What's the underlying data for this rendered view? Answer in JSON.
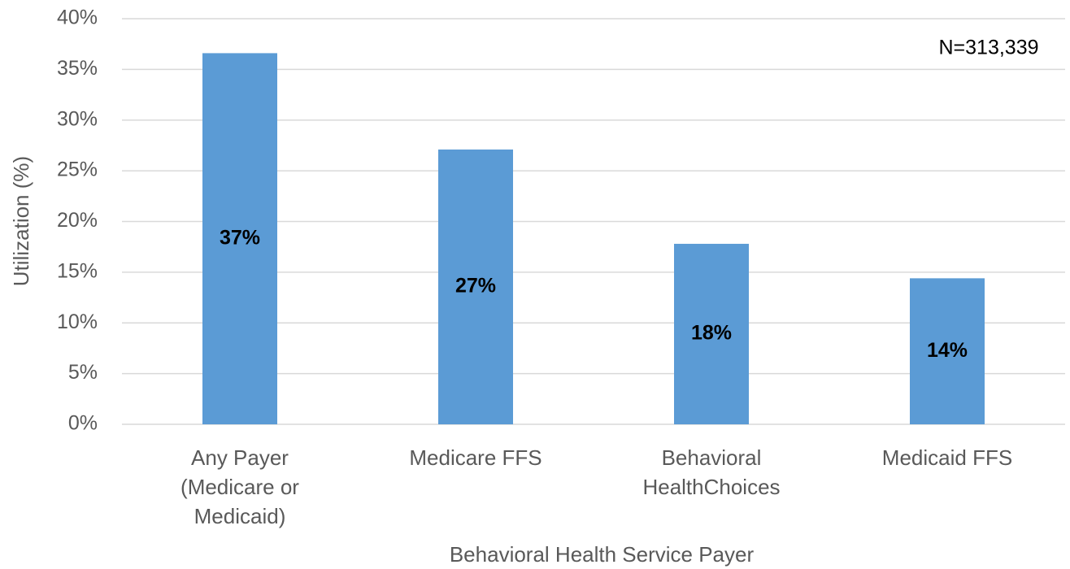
{
  "chart_data": {
    "type": "bar",
    "categories": [
      "Any Payer (Medicare or Medicaid)",
      "Medicare FFS",
      "Behavioral HealthChoices",
      "Medicaid FFS"
    ],
    "values": [
      36.6,
      27.1,
      17.8,
      14.4
    ],
    "value_labels": [
      "37%",
      "27%",
      "18%",
      "14%"
    ],
    "color": "#5b9bd5",
    "x_label": "Behavioral Health Service Payer",
    "y_label": "Utilization (%)",
    "annotation": "N=313,339",
    "ylim": [
      0,
      40
    ],
    "yticks": [
      {
        "value": 0,
        "label": "0%"
      },
      {
        "value": 5,
        "label": "5%"
      },
      {
        "value": 10,
        "label": "10%"
      },
      {
        "value": 15,
        "label": "15%"
      },
      {
        "value": 20,
        "label": "20%"
      },
      {
        "value": 25,
        "label": "25%"
      },
      {
        "value": 30,
        "label": "30%"
      },
      {
        "value": 35,
        "label": "35%"
      },
      {
        "value": 40,
        "label": "40%"
      }
    ],
    "grid": true
  }
}
